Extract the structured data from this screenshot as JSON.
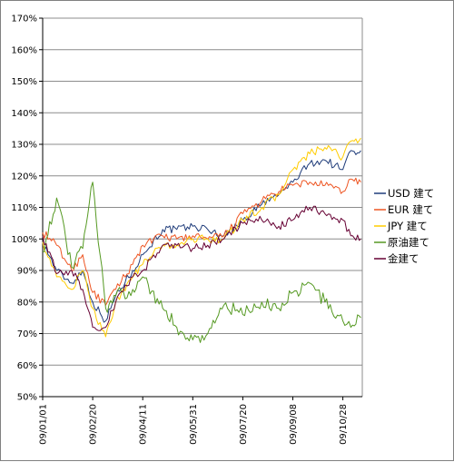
{
  "chart_data": {
    "type": "line",
    "title": "",
    "xlabel": "",
    "ylabel": "",
    "ylim": [
      50,
      170
    ],
    "y_unit": "%",
    "y_ticks": [
      50,
      60,
      70,
      80,
      90,
      100,
      110,
      120,
      130,
      140,
      150,
      160,
      170
    ],
    "y_tick_labels": [
      "50%",
      "60%",
      "70%",
      "80%",
      "90%",
      "100%",
      "110%",
      "120%",
      "130%",
      "140%",
      "150%",
      "160%",
      "170%"
    ],
    "x_tick_labels": [
      "09/01/01",
      "09/02/20",
      "09/04/11",
      "09/05/31",
      "09/07/20",
      "09/09/08",
      "09/10/28"
    ],
    "grid": "horizontal",
    "legend_position": "right",
    "x": [
      "2009-01-01",
      "2009-01-15",
      "2009-01-30",
      "2009-02-10",
      "2009-02-20",
      "2009-03-05",
      "2009-03-15",
      "2009-04-01",
      "2009-04-11",
      "2009-05-01",
      "2009-05-15",
      "2009-05-31",
      "2009-06-15",
      "2009-07-01",
      "2009-07-20",
      "2009-08-08",
      "2009-08-25",
      "2009-09-08",
      "2009-09-25",
      "2009-10-10",
      "2009-10-28",
      "2009-11-05",
      "2009-11-15"
    ],
    "series": [
      {
        "name": "USD 建て",
        "color": "#1f3c7a",
        "values": [
          99,
          90,
          86,
          90,
          80,
          74,
          82,
          90,
          95,
          103,
          103,
          104,
          103,
          101,
          106,
          111,
          114,
          118,
          124,
          125,
          122,
          128,
          128
        ]
      },
      {
        "name": "EUR 建て",
        "color": "#ee5522",
        "values": [
          102,
          98,
          90,
          95,
          83,
          79,
          84,
          92,
          98,
          101,
          100,
          101,
          100,
          101,
          108,
          112,
          115,
          117,
          118,
          117,
          115,
          119,
          118
        ]
      },
      {
        "name": "JPY 建て",
        "color": "#ffcc00",
        "values": [
          99,
          88,
          84,
          90,
          78,
          69,
          80,
          88,
          92,
          98,
          98,
          100,
          100,
          100,
          106,
          110,
          114,
          122,
          127,
          129,
          126,
          131,
          132
        ]
      },
      {
        "name": "原油建て",
        "color": "#559922",
        "values": [
          96,
          113,
          91,
          97,
          118,
          78,
          82,
          84,
          88,
          78,
          72,
          68,
          70,
          79,
          76,
          80,
          78,
          83,
          86,
          80,
          74,
          72,
          75
        ]
      },
      {
        "name": "金建て",
        "color": "#660033",
        "values": [
          101,
          89,
          90,
          84,
          72,
          72,
          80,
          88,
          90,
          98,
          98,
          97,
          98,
          100,
          105,
          106,
          104,
          106,
          110,
          108,
          106,
          101,
          100
        ]
      }
    ]
  }
}
